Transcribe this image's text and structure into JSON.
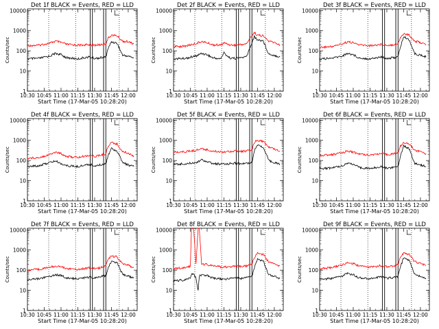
{
  "chart_data": {
    "type": "line",
    "subtitle": "Start Time (17-Mar-05 10:28:20)",
    "ylabel": "Counts/sec",
    "yscale": "log",
    "ylim": [
      1,
      12000
    ],
    "xlim": [
      "10:30",
      "12:08"
    ],
    "xticks": [
      "10:30",
      "10:45",
      "11:00",
      "11:15",
      "11:30",
      "11:45",
      "12:00"
    ],
    "yticks": [
      {
        "v": 1,
        "label": "1"
      },
      {
        "v": 10,
        "label": "10"
      },
      {
        "v": 100,
        "label": "100"
      },
      {
        "v": 1000,
        "label": "1000"
      },
      {
        "v": 10000,
        "label": "10000"
      }
    ],
    "series_colors": {
      "events": "#000000",
      "lld": "#ff0000"
    },
    "dotted_lines_time": [
      "10:49",
      "11:13",
      "11:38",
      "11:52"
    ],
    "solid_lines_time": [
      "11:26",
      "11:28",
      "11:38",
      "11:40"
    ],
    "grid": false,
    "panels": [
      {
        "title": "Det 1f BLACK = Events, RED = LLD",
        "times": [
          "10:30",
          "10:40",
          "10:50",
          "10:55",
          "11:00",
          "11:05",
          "11:15",
          "11:25",
          "11:30",
          "11:35",
          "11:40",
          "11:42",
          "11:45",
          "11:50",
          "11:55",
          "12:00",
          "12:05"
        ],
        "events": [
          40,
          42,
          55,
          75,
          65,
          45,
          40,
          50,
          42,
          45,
          50,
          130,
          280,
          240,
          60,
          55,
          45
        ],
        "lld": [
          180,
          190,
          240,
          300,
          260,
          210,
          190,
          200,
          190,
          200,
          220,
          420,
          600,
          560,
          300,
          280,
          220
        ]
      },
      {
        "title": "Det 2f BLACK = Events, RED = LLD",
        "times": [
          "10:30",
          "10:40",
          "10:50",
          "10:55",
          "11:00",
          "11:05",
          "11:12",
          "11:15",
          "11:20",
          "11:25",
          "11:35",
          "11:38",
          "11:42",
          "11:45",
          "11:50",
          "11:55",
          "12:00",
          "12:05"
        ],
        "events": [
          40,
          42,
          55,
          75,
          65,
          45,
          40,
          80,
          45,
          42,
          50,
          130,
          500,
          350,
          320,
          70,
          60,
          50
        ],
        "lld": [
          160,
          170,
          230,
          290,
          250,
          200,
          190,
          250,
          200,
          190,
          220,
          400,
          800,
          600,
          550,
          300,
          260,
          200
        ]
      },
      {
        "title": "Det 3f BLACK = Events, RED = LLD",
        "times": [
          "10:30",
          "10:40",
          "10:50",
          "10:55",
          "11:00",
          "11:05",
          "11:15",
          "11:25",
          "11:30",
          "11:35",
          "11:40",
          "11:42",
          "11:45",
          "11:50",
          "11:55",
          "12:00",
          "12:05"
        ],
        "events": [
          40,
          42,
          55,
          75,
          65,
          45,
          40,
          50,
          42,
          45,
          50,
          150,
          500,
          350,
          70,
          60,
          50
        ],
        "lld": [
          150,
          160,
          220,
          280,
          250,
          200,
          180,
          210,
          190,
          200,
          220,
          450,
          700,
          600,
          300,
          260,
          200
        ]
      },
      {
        "title": "Det 4f BLACK = Events, RED = LLD",
        "times": [
          "10:30",
          "10:40",
          "10:50",
          "10:55",
          "11:00",
          "11:05",
          "11:15",
          "11:25",
          "11:30",
          "11:35",
          "11:40",
          "11:42",
          "11:45",
          "11:50",
          "11:55",
          "12:00",
          "12:05"
        ],
        "events": [
          50,
          55,
          80,
          95,
          70,
          55,
          50,
          65,
          55,
          60,
          70,
          180,
          400,
          300,
          80,
          60,
          50
        ],
        "lld": [
          130,
          140,
          200,
          260,
          220,
          160,
          140,
          180,
          160,
          180,
          220,
          500,
          800,
          650,
          280,
          230,
          170
        ]
      },
      {
        "title": "Det 5f BLACK = Events, RED = LLD",
        "times": [
          "10:30",
          "10:40",
          "10:50",
          "10:55",
          "11:00",
          "11:05",
          "11:15",
          "11:25",
          "11:30",
          "11:35",
          "11:40",
          "11:42",
          "11:45",
          "11:50",
          "11:55",
          "12:00",
          "12:05"
        ],
        "events": [
          65,
          68,
          80,
          110,
          90,
          70,
          65,
          75,
          68,
          72,
          80,
          300,
          600,
          450,
          100,
          80,
          65
        ],
        "lld": [
          260,
          270,
          320,
          390,
          340,
          290,
          270,
          300,
          280,
          300,
          330,
          800,
          1000,
          900,
          450,
          380,
          300
        ]
      },
      {
        "title": "Det 6f BLACK = Events, RED = LLD",
        "times": [
          "10:30",
          "10:40",
          "10:50",
          "10:55",
          "11:00",
          "11:05",
          "11:15",
          "11:25",
          "11:30",
          "11:35",
          "11:40",
          "11:42",
          "11:45",
          "11:50",
          "11:55",
          "12:00",
          "12:05"
        ],
        "events": [
          40,
          42,
          55,
          75,
          65,
          45,
          40,
          50,
          42,
          45,
          50,
          160,
          550,
          380,
          70,
          60,
          50
        ],
        "lld": [
          180,
          190,
          240,
          300,
          260,
          210,
          190,
          220,
          200,
          210,
          240,
          500,
          800,
          650,
          320,
          280,
          220
        ]
      },
      {
        "title": "Det 7f BLACK = Events, RED = LLD",
        "times": [
          "10:30",
          "10:40",
          "10:50",
          "10:55",
          "11:00",
          "11:05",
          "11:15",
          "11:25",
          "11:30",
          "11:35",
          "11:40",
          "11:42",
          "11:45",
          "11:50",
          "11:55",
          "12:00",
          "12:05"
        ],
        "events": [
          35,
          38,
          50,
          60,
          55,
          40,
          38,
          45,
          40,
          45,
          55,
          120,
          280,
          240,
          60,
          50,
          40
        ],
        "lld": [
          100,
          110,
          140,
          160,
          150,
          120,
          110,
          130,
          120,
          130,
          170,
          350,
          500,
          450,
          200,
          170,
          140
        ]
      },
      {
        "title": "Det 8f BLACK = Events, RED = LLD",
        "times": [
          "10:30",
          "10:40",
          "10:45",
          "10:46",
          "10:48",
          "10:50",
          "10:52",
          "10:53",
          "10:55",
          "11:00",
          "11:05",
          "11:15",
          "11:25",
          "11:30",
          "11:35",
          "11:40",
          "11:42",
          "11:45",
          "11:50",
          "11:55",
          "12:00",
          "12:05"
        ],
        "events": [
          30,
          32,
          40,
          60,
          60,
          45,
          9,
          50,
          60,
          55,
          40,
          35,
          42,
          38,
          42,
          50,
          120,
          350,
          300,
          60,
          50,
          40
        ],
        "lld": [
          120,
          130,
          160,
          12000,
          12000,
          200,
          12000,
          12000,
          200,
          190,
          160,
          140,
          160,
          150,
          160,
          200,
          400,
          700,
          600,
          250,
          200,
          160
        ]
      },
      {
        "title": "Det 9f BLACK = Events, RED = LLD",
        "times": [
          "10:30",
          "10:40",
          "10:50",
          "10:55",
          "11:00",
          "11:05",
          "11:15",
          "11:25",
          "11:30",
          "11:35",
          "11:40",
          "11:42",
          "11:45",
          "11:50",
          "11:55",
          "12:00",
          "12:05"
        ],
        "events": [
          35,
          38,
          50,
          70,
          60,
          42,
          38,
          48,
          40,
          42,
          50,
          140,
          400,
          300,
          60,
          50,
          40
        ],
        "lld": [
          120,
          130,
          180,
          230,
          210,
          160,
          140,
          170,
          150,
          160,
          190,
          450,
          700,
          600,
          260,
          220,
          170
        ]
      }
    ]
  }
}
